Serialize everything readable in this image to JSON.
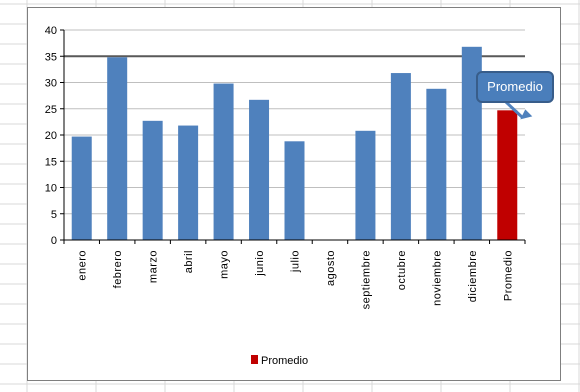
{
  "chart_data": {
    "type": "bar",
    "categories": [
      "enero",
      "febrero",
      "marzo",
      "abril",
      "mayo",
      "junio",
      "julio",
      "agosto",
      "septiembre",
      "octubre",
      "noviembre",
      "diciembre",
      "Promedio"
    ],
    "values": [
      19.7,
      34.8,
      22.7,
      21.8,
      29.8,
      26.7,
      18.8,
      null,
      20.8,
      31.8,
      28.8,
      36.8,
      24.7
    ],
    "highlight_category": "Promedio",
    "ylim": [
      0,
      40
    ],
    "yticks": [
      0,
      5,
      10,
      15,
      20,
      25,
      30,
      35,
      40
    ],
    "grid": true,
    "reference_line": 35,
    "legend": {
      "entries": [
        "Promedio"
      ],
      "position": "bottom"
    },
    "annotation": {
      "text": "Promedio",
      "target": "Promedio"
    },
    "colors": {
      "bar": "#4f81bd",
      "highlight": "#c00000",
      "reference_line": "#595959",
      "callout": "#4f81bd"
    }
  }
}
